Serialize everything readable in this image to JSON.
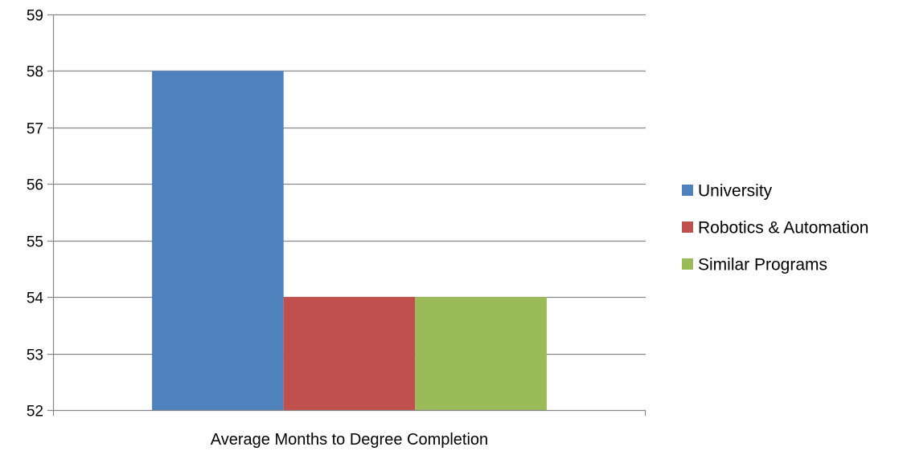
{
  "chart_data": {
    "type": "bar",
    "title": "",
    "xlabel": "",
    "ylabel": "",
    "categories": [
      "Average Months to Degree Completion"
    ],
    "series": [
      {
        "name": "University",
        "values": [
          58
        ],
        "color": "#4F81BD"
      },
      {
        "name": "Robotics & Automation",
        "values": [
          54
        ],
        "color": "#C0504D"
      },
      {
        "name": "Similar Programs",
        "values": [
          54
        ],
        "color": "#9BBB59"
      }
    ],
    "ylim": [
      52,
      59
    ],
    "yticks": [
      52,
      53,
      54,
      55,
      56,
      57,
      58,
      59
    ],
    "ytick_labels": [
      "52",
      "53",
      "54",
      "55",
      "56",
      "57",
      "58",
      "59"
    ],
    "grid": true,
    "legend": "right",
    "colors": {
      "gridline": "#868686",
      "axis": "#868686"
    }
  }
}
